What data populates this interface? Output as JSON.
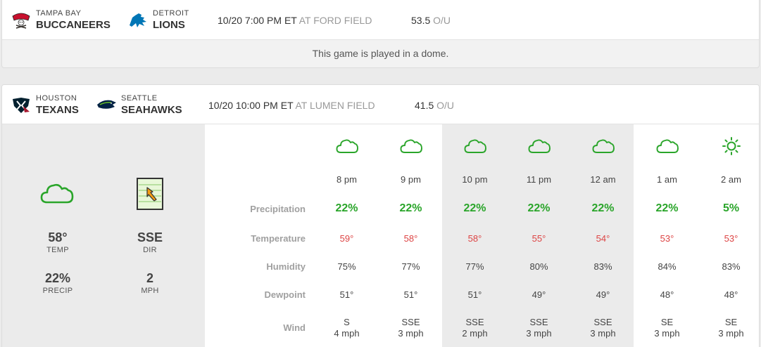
{
  "colors": {
    "accent_green": "#2aa52a",
    "temp_red": "#dd4444",
    "label_gray": "#a0a0a0"
  },
  "game1": {
    "away": {
      "city": "TAMPA BAY",
      "name": "BUCCANEERS",
      "logo_icon": "buccaneers-logo-icon"
    },
    "home": {
      "city": "DETROIT",
      "name": "LIONS",
      "logo_icon": "lions-logo-icon"
    },
    "time": "10/20 7:00 PM ET",
    "venue": "AT FORD FIELD",
    "ou_value": "53.5",
    "ou_label": "O/U",
    "dome_message": "This game is played in a dome."
  },
  "game2": {
    "away": {
      "city": "HOUSTON",
      "name": "TEXANS",
      "logo_icon": "texans-logo-icon"
    },
    "home": {
      "city": "SEATTLE",
      "name": "SEAHAWKS",
      "logo_icon": "seahawks-logo-icon"
    },
    "time": "10/20 10:00 PM ET",
    "venue": "AT LUMEN FIELD",
    "ou_value": "41.5",
    "ou_label": "O/U",
    "summary": {
      "icon": "cloudy-icon",
      "temp": {
        "value": "58°",
        "label": "TEMP"
      },
      "dir": {
        "value": "SSE",
        "label": "DIR",
        "icon": "wind-direction-icon"
      },
      "precip": {
        "value": "22%",
        "label": "PRECIP"
      },
      "speed": {
        "value": "2",
        "label": "MPH"
      }
    },
    "row_labels": {
      "precipitation": "Precipitation",
      "temperature": "Temperature",
      "humidity": "Humidity",
      "dewpoint": "Dewpoint",
      "wind": "Wind"
    },
    "hours": [
      {
        "icon": "cloudy-icon",
        "time": "8 pm",
        "precip": "22%",
        "temp": "59°",
        "humidity": "75%",
        "dewpoint": "51°",
        "wind_dir": "S",
        "wind_speed": "4 mph"
      },
      {
        "icon": "cloudy-icon",
        "time": "9 pm",
        "precip": "22%",
        "temp": "58°",
        "humidity": "77%",
        "dewpoint": "51°",
        "wind_dir": "SSE",
        "wind_speed": "3 mph"
      },
      {
        "icon": "cloudy-icon",
        "time": "10 pm",
        "precip": "22%",
        "temp": "58°",
        "humidity": "77%",
        "dewpoint": "51°",
        "wind_dir": "SSE",
        "wind_speed": "2 mph"
      },
      {
        "icon": "cloudy-icon",
        "time": "11 pm",
        "precip": "22%",
        "temp": "55°",
        "humidity": "80%",
        "dewpoint": "49°",
        "wind_dir": "SSE",
        "wind_speed": "3 mph"
      },
      {
        "icon": "cloudy-icon",
        "time": "12 am",
        "precip": "22%",
        "temp": "54°",
        "humidity": "83%",
        "dewpoint": "49°",
        "wind_dir": "SSE",
        "wind_speed": "3 mph"
      },
      {
        "icon": "cloudy-icon",
        "time": "1 am",
        "precip": "22%",
        "temp": "53°",
        "humidity": "84%",
        "dewpoint": "48°",
        "wind_dir": "SE",
        "wind_speed": "3 mph"
      },
      {
        "icon": "sunny-icon",
        "time": "2 am",
        "precip": "5%",
        "temp": "53°",
        "humidity": "83%",
        "dewpoint": "48°",
        "wind_dir": "SE",
        "wind_speed": "3 mph"
      }
    ]
  }
}
